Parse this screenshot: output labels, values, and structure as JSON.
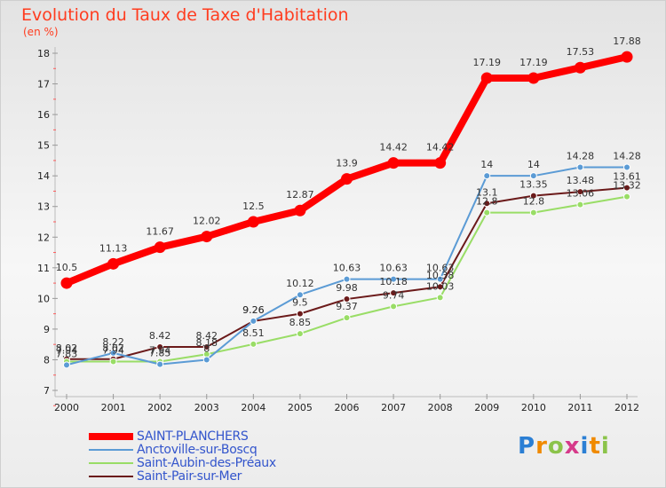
{
  "title": "Evolution du Taux de Taxe d'Habitation",
  "subtitle": "(en %)",
  "logo": "Proxiti",
  "chart_data": {
    "type": "line",
    "title": "Evolution du Taux de Taxe d'Habitation",
    "subtitle": "(en %)",
    "x": [
      2000,
      2001,
      2002,
      2003,
      2004,
      2005,
      2006,
      2007,
      2008,
      2009,
      2010,
      2011,
      2012
    ],
    "ylim": [
      7,
      18
    ],
    "yticks": [
      7,
      8,
      9,
      10,
      11,
      12,
      13,
      14,
      15,
      16,
      17,
      18
    ],
    "grid": false,
    "legend_position": "bottom-left",
    "series": [
      {
        "name": "SAINT-PLANCHERS",
        "color": "#ff0000",
        "values": [
          10.5,
          11.13,
          11.67,
          12.02,
          12.5,
          12.87,
          13.9,
          14.42,
          14.42,
          17.19,
          17.19,
          17.53,
          17.88
        ],
        "labels": [
          "10.5",
          "11.13",
          "11.67",
          "12.02",
          "12.5",
          "12.87",
          "13.9",
          "14.42",
          "14.42",
          "17.19",
          "17.19",
          "17.53",
          "17.88"
        ]
      },
      {
        "name": "Anctoville-sur-Boscq",
        "color": "#5b9bd5",
        "values": [
          7.83,
          8.22,
          7.85,
          8.0,
          9.26,
          10.12,
          10.63,
          10.63,
          10.63,
          14.0,
          14.0,
          14.28,
          14.28
        ],
        "labels": [
          "7.83",
          "8.22",
          "7.85",
          "8",
          "9.26",
          "10.12",
          "10.63",
          "10.63",
          "10.63",
          "14",
          "14",
          "14.28",
          "14.28"
        ]
      },
      {
        "name": "Saint-Aubin-des-Préaux",
        "color": "#99dd66",
        "values": [
          7.94,
          7.94,
          7.94,
          8.18,
          8.51,
          8.85,
          9.37,
          9.74,
          10.03,
          12.8,
          12.8,
          13.06,
          13.32
        ],
        "labels": [
          "7.94",
          "7.94",
          "7.94",
          "8.18",
          "8.51",
          "8.85",
          "9.37",
          "9.74",
          "10.03",
          "12.8",
          "12.8",
          "13.06",
          "13.32"
        ]
      },
      {
        "name": "Saint-Pair-sur-Mer",
        "color": "#6b1a1a",
        "values": [
          8.02,
          8.02,
          8.42,
          8.42,
          9.26,
          9.5,
          9.98,
          10.18,
          10.38,
          13.1,
          13.35,
          13.48,
          13.61
        ],
        "labels": [
          "8.02",
          "8.02",
          "8.42",
          "8.42",
          "9.26",
          "9.5",
          "9.98",
          "10.18",
          "10.38",
          "13.1",
          "13.35",
          "13.48",
          "13.61"
        ]
      }
    ]
  }
}
